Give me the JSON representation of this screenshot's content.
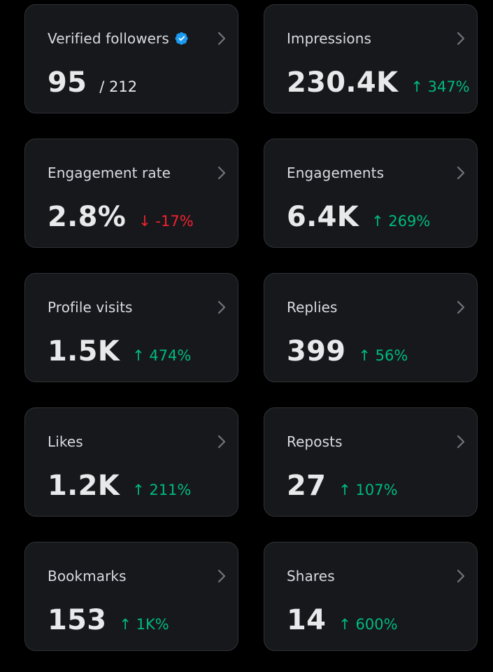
{
  "colors": {
    "background": "#000000",
    "card": "#16181c",
    "border": "#2f3336",
    "positive": "#00ba7c",
    "negative": "#f4212e",
    "verified": "#1d9bf0"
  },
  "icons": {
    "verified": "verified-badge-icon",
    "chevron": "chevron-right-icon",
    "up": "arrow-up-icon",
    "down": "arrow-down-icon"
  },
  "cards": [
    {
      "label": "Verified followers",
      "value": "95",
      "suffix": "/ 212"
    },
    {
      "label": "Impressions",
      "value": "230.4K",
      "change": "↑ 347%"
    },
    {
      "label": "Engagement rate",
      "value": "2.8%",
      "change": "↓ -17%"
    },
    {
      "label": "Engagements",
      "value": "6.4K",
      "change": "↑ 269%"
    },
    {
      "label": "Profile visits",
      "value": "1.5K",
      "change": "↑ 474%"
    },
    {
      "label": "Replies",
      "value": "399",
      "change": "↑ 56%"
    },
    {
      "label": "Likes",
      "value": "1.2K",
      "change": "↑ 211%"
    },
    {
      "label": "Reposts",
      "value": "27",
      "change": "↑ 107%"
    },
    {
      "label": "Bookmarks",
      "value": "153",
      "change": "↑ 1K%"
    },
    {
      "label": "Shares",
      "value": "14",
      "change": "↑ 600%"
    }
  ]
}
